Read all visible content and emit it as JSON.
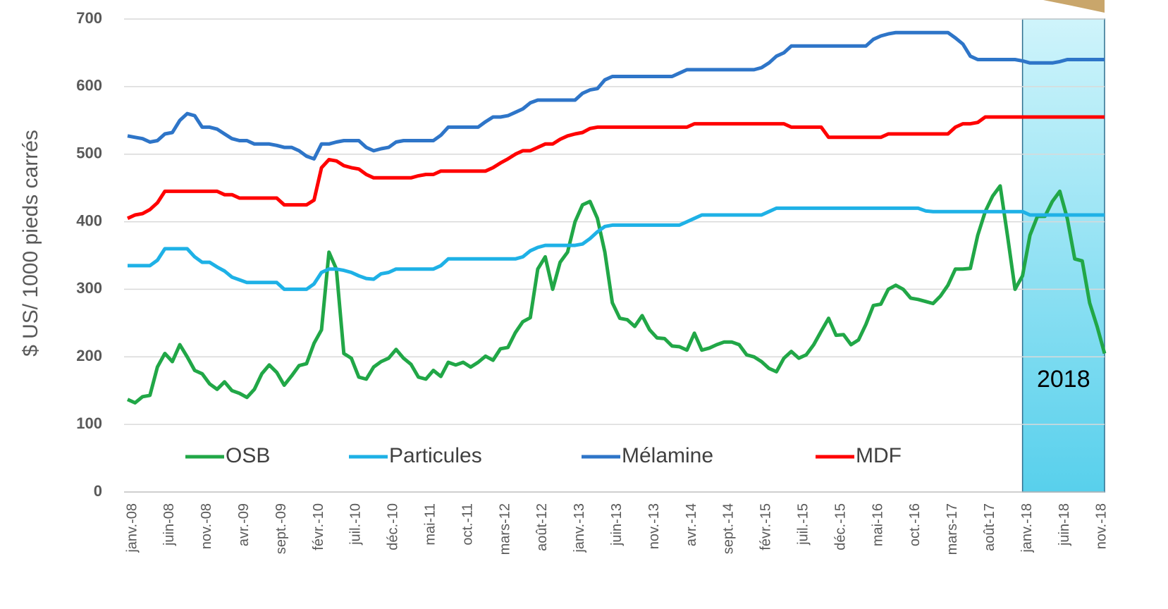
{
  "chart_data": {
    "type": "line",
    "y_label": "$ US/ 1000 pieds carrés",
    "annotation": "2018",
    "ylim": [
      0,
      700
    ],
    "yticks": [
      0,
      100,
      200,
      300,
      400,
      500,
      600,
      700
    ],
    "grid": true,
    "legend": "bottom",
    "categories": [
      "janv.-08",
      null,
      null,
      null,
      null,
      "juin-08",
      null,
      null,
      null,
      null,
      "nov.-08",
      null,
      null,
      null,
      null,
      "avr.-09",
      null,
      null,
      null,
      null,
      "sept.-09",
      null,
      null,
      null,
      null,
      "févr.-10",
      null,
      null,
      null,
      null,
      "juil.-10",
      null,
      null,
      null,
      null,
      "déc.-10",
      null,
      null,
      null,
      null,
      "mai-11",
      null,
      null,
      null,
      null,
      "oct.-11",
      null,
      null,
      null,
      null,
      "mars-12",
      null,
      null,
      null,
      null,
      "août-12",
      null,
      null,
      null,
      null,
      "janv.-13",
      null,
      null,
      null,
      null,
      "juin-13",
      null,
      null,
      null,
      null,
      "nov.-13",
      null,
      null,
      null,
      null,
      "avr.-14",
      null,
      null,
      null,
      null,
      "sept.-14",
      null,
      null,
      null,
      null,
      "févr.-15",
      null,
      null,
      null,
      null,
      "juil.-15",
      null,
      null,
      null,
      null,
      "déc.-15",
      null,
      null,
      null,
      null,
      "mai-16",
      null,
      null,
      null,
      null,
      "oct.-16",
      null,
      null,
      null,
      null,
      "mars-17",
      null,
      null,
      null,
      null,
      "août-17",
      null,
      null,
      null,
      null,
      "janv.-18",
      null,
      null,
      null,
      null,
      "juin-18",
      null,
      null,
      null,
      null,
      "nov.-18",
      null
    ],
    "series": [
      {
        "name": "OSB",
        "color": "#21a747",
        "values": [
          137,
          132,
          141,
          143,
          185,
          205,
          193,
          218,
          200,
          180,
          175,
          160,
          152,
          163,
          150,
          146,
          140,
          152,
          175,
          188,
          177,
          158,
          172,
          187,
          190,
          220,
          240,
          355,
          330,
          205,
          198,
          170,
          167,
          185,
          193,
          198,
          211,
          198,
          189,
          170,
          167,
          180,
          171,
          192,
          188,
          192,
          185,
          192,
          201,
          195,
          212,
          214,
          236,
          252,
          258,
          330,
          348,
          300,
          340,
          355,
          400,
          425,
          430,
          405,
          355,
          280,
          257,
          255,
          245,
          261,
          240,
          228,
          227,
          216,
          215,
          210,
          235,
          210,
          213,
          218,
          222,
          222,
          218,
          203,
          200,
          193,
          183,
          178,
          198,
          208,
          198,
          203,
          218,
          238,
          257,
          232,
          233,
          218,
          225,
          248,
          276,
          278,
          300,
          306,
          300,
          287,
          285,
          282,
          279,
          290,
          306,
          330,
          330,
          331,
          380,
          415,
          438,
          453,
          378,
          300,
          320,
          380,
          408,
          408,
          430,
          445,
          405,
          345,
          342,
          280,
          245,
          205
        ]
      },
      {
        "name": "Particules",
        "color": "#1eb1e6",
        "values": [
          335,
          335,
          335,
          335,
          343,
          360,
          360,
          360,
          360,
          348,
          340,
          340,
          333,
          327,
          318,
          314,
          310,
          310,
          310,
          310,
          310,
          300,
          300,
          300,
          300,
          308,
          325,
          330,
          330,
          328,
          325,
          320,
          316,
          315,
          323,
          325,
          330,
          330,
          330,
          330,
          330,
          330,
          335,
          345,
          345,
          345,
          345,
          345,
          345,
          345,
          345,
          345,
          345,
          348,
          357,
          362,
          365,
          365,
          365,
          365,
          365,
          367,
          375,
          385,
          393,
          395,
          395,
          395,
          395,
          395,
          395,
          395,
          395,
          395,
          395,
          400,
          405,
          410,
          410,
          410,
          410,
          410,
          410,
          410,
          410,
          410,
          415,
          420,
          420,
          420,
          420,
          420,
          420,
          420,
          420,
          420,
          420,
          420,
          420,
          420,
          420,
          420,
          420,
          420,
          420,
          420,
          420,
          416,
          415,
          415,
          415,
          415,
          415,
          415,
          415,
          415,
          415,
          415,
          415,
          415,
          415,
          410,
          410,
          410,
          410,
          410,
          410,
          410,
          410,
          410,
          410,
          410
        ]
      },
      {
        "name": "Mélamine",
        "color": "#2e75c8",
        "values": [
          527,
          525,
          523,
          518,
          520,
          530,
          532,
          550,
          560,
          557,
          540,
          540,
          537,
          530,
          523,
          520,
          520,
          515,
          515,
          515,
          513,
          510,
          510,
          505,
          497,
          493,
          515,
          515,
          518,
          520,
          520,
          520,
          510,
          505,
          508,
          510,
          518,
          520,
          520,
          520,
          520,
          520,
          528,
          540,
          540,
          540,
          540,
          540,
          548,
          555,
          555,
          557,
          562,
          567,
          576,
          580,
          580,
          580,
          580,
          580,
          580,
          590,
          595,
          597,
          610,
          615,
          615,
          615,
          615,
          615,
          615,
          615,
          615,
          615,
          620,
          625,
          625,
          625,
          625,
          625,
          625,
          625,
          625,
          625,
          625,
          628,
          635,
          645,
          650,
          660,
          660,
          660,
          660,
          660,
          660,
          660,
          660,
          660,
          660,
          660,
          670,
          675,
          678,
          680,
          680,
          680,
          680,
          680,
          680,
          680,
          680,
          672,
          663,
          645,
          640,
          640,
          640,
          640,
          640,
          640,
          638,
          635,
          635,
          635,
          635,
          637,
          640,
          640,
          640,
          640,
          640,
          640
        ]
      },
      {
        "name": "MDF",
        "color": "#ff0000",
        "values": [
          405,
          410,
          412,
          418,
          428,
          445,
          445,
          445,
          445,
          445,
          445,
          445,
          445,
          440,
          440,
          435,
          435,
          435,
          435,
          435,
          435,
          425,
          425,
          425,
          425,
          432,
          480,
          492,
          490,
          483,
          480,
          478,
          470,
          465,
          465,
          465,
          465,
          465,
          465,
          468,
          470,
          470,
          475,
          475,
          475,
          475,
          475,
          475,
          475,
          480,
          487,
          493,
          500,
          505,
          505,
          510,
          515,
          515,
          522,
          527,
          530,
          532,
          538,
          540,
          540,
          540,
          540,
          540,
          540,
          540,
          540,
          540,
          540,
          540,
          540,
          540,
          545,
          545,
          545,
          545,
          545,
          545,
          545,
          545,
          545,
          545,
          545,
          545,
          545,
          540,
          540,
          540,
          540,
          540,
          525,
          525,
          525,
          525,
          525,
          525,
          525,
          525,
          530,
          530,
          530,
          530,
          530,
          530,
          530,
          530,
          530,
          540,
          545,
          545,
          547,
          555,
          555,
          555,
          555,
          555,
          555,
          555,
          555,
          555,
          555,
          555,
          555,
          555,
          555,
          555,
          555,
          555
        ]
      }
    ]
  }
}
